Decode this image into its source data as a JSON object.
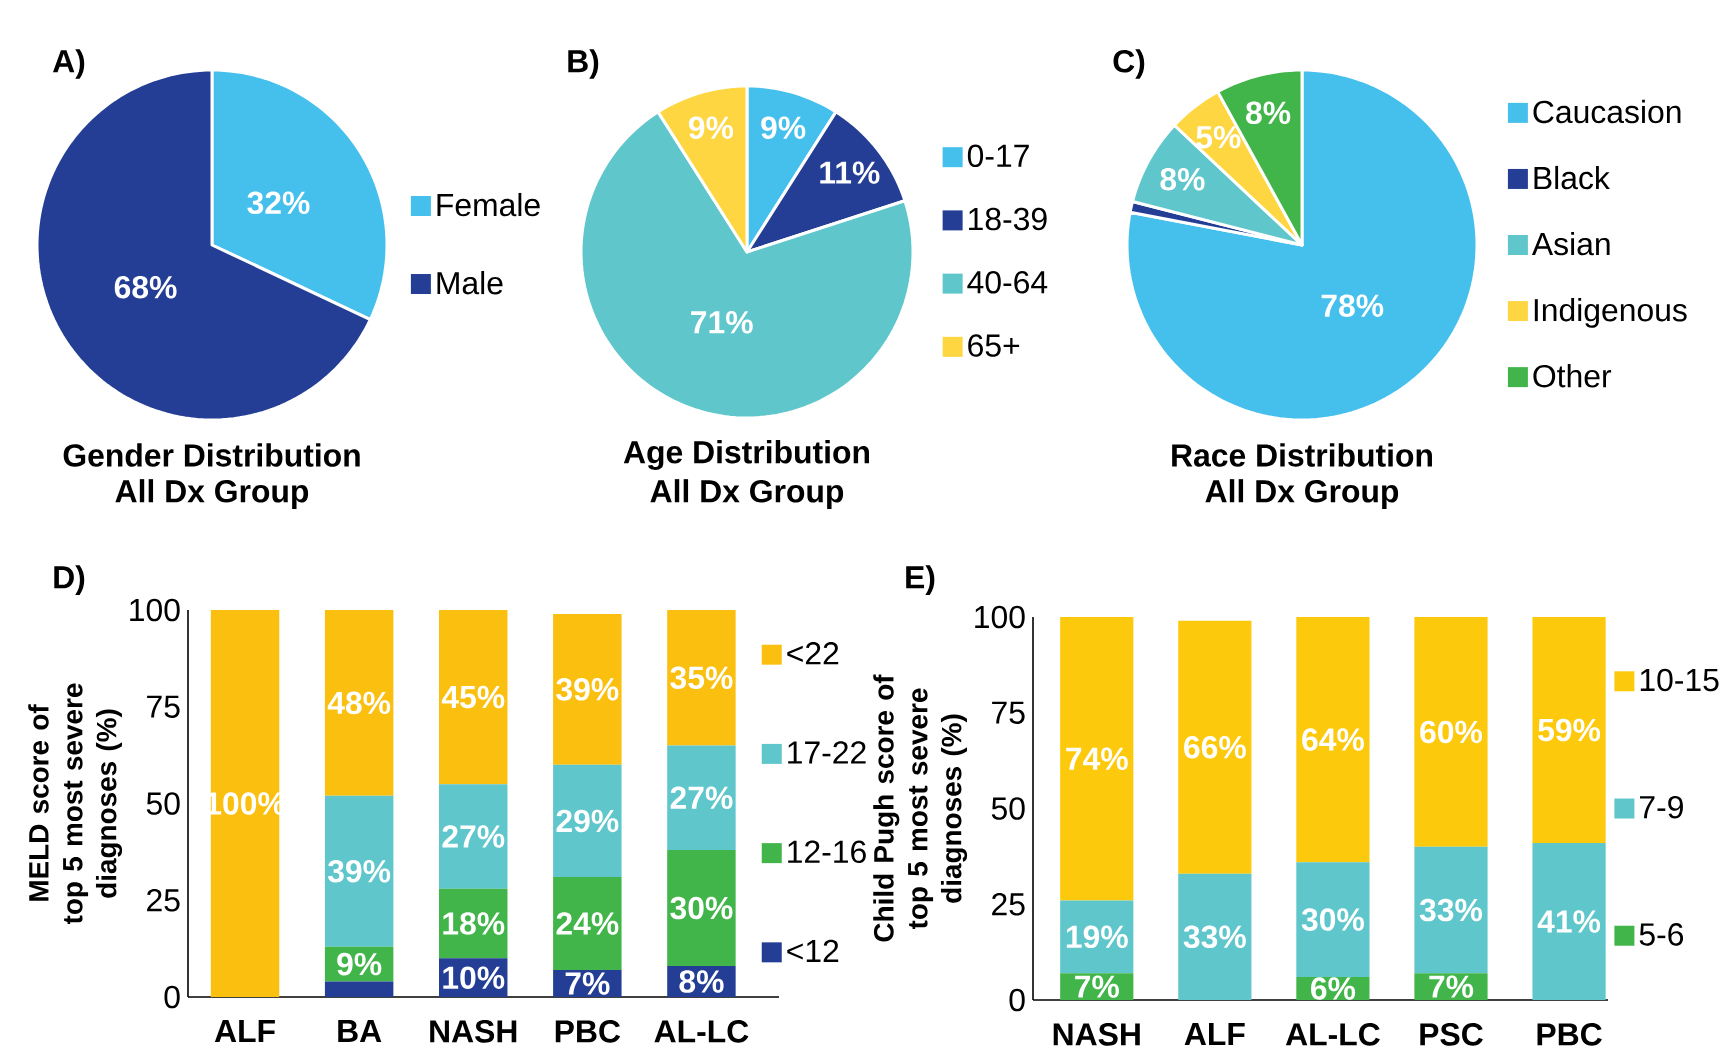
{
  "chart_data": [
    {
      "type": "pie",
      "title": "Gender Distribution",
      "subtitle": "All Dx Group",
      "annotations": [
        "A)"
      ],
      "categories": [
        "Female",
        "Male"
      ],
      "values": [
        32,
        68
      ],
      "colors": [
        "#45bfec",
        "#233e94"
      ],
      "value_labels": [
        "32%",
        "68%"
      ],
      "legend": "right"
    },
    {
      "type": "pie",
      "title": "Age Distribution",
      "subtitle": "All Dx Group",
      "annotations": [
        "B)"
      ],
      "categories": [
        "0-17",
        "18-39",
        "40-64",
        "65+"
      ],
      "values": [
        9,
        11,
        71,
        9
      ],
      "colors": [
        "#45bfec",
        "#233e94",
        "#5fc6cb",
        "#fdd641"
      ],
      "value_labels": [
        "9%",
        "11%",
        "71%",
        "9%"
      ],
      "legend": "right"
    },
    {
      "type": "pie",
      "title": "Race Distribution",
      "subtitle": "All Dx Group",
      "annotations": [
        "C)"
      ],
      "categories": [
        "Caucasion",
        "Black",
        "Asian",
        "Indigenous",
        "Other"
      ],
      "values": [
        78,
        1,
        8,
        5,
        8
      ],
      "colors": [
        "#45bfec",
        "#233e94",
        "#5fc6cb",
        "#fdd641",
        "#41b549"
      ],
      "value_labels": [
        "78%",
        null,
        "8%",
        "5%",
        "8%"
      ],
      "legend": "right"
    },
    {
      "type": "bar",
      "stacked": true,
      "annotations": [
        "D)"
      ],
      "ylabel": "MELD score of top 5 most severe diagnoses (%)",
      "categories": [
        "ALF",
        "BA",
        "NASH",
        "PBC",
        "AL-LC"
      ],
      "ylim": [
        0,
        100
      ],
      "yticks": [
        0,
        25,
        50,
        75,
        100
      ],
      "legend": "right",
      "series": [
        {
          "name": "<12",
          "color": "#233e94",
          "values": [
            0,
            4,
            10,
            7,
            8
          ],
          "value_labels": [
            null,
            null,
            "10%",
            "7%",
            "8%"
          ]
        },
        {
          "name": "12-16",
          "color": "#41b549",
          "values": [
            0,
            9,
            18,
            24,
            30
          ],
          "value_labels": [
            null,
            "9%",
            "18%",
            "24%",
            "30%"
          ]
        },
        {
          "name": "17-22",
          "color": "#5fc6cb",
          "values": [
            0,
            39,
            27,
            29,
            27
          ],
          "value_labels": [
            null,
            "39%",
            "27%",
            "29%",
            "27%"
          ]
        },
        {
          "name": "<22",
          "color": "#fbbf10",
          "values": [
            100,
            48,
            45,
            39,
            35
          ],
          "value_labels": [
            "100%",
            "48%",
            "45%",
            "39%",
            "35%"
          ]
        }
      ]
    },
    {
      "type": "bar",
      "stacked": true,
      "annotations": [
        "E)"
      ],
      "ylabel": "Child Pugh score of top 5 most severe diagnoses (%)",
      "categories": [
        "NASH",
        "ALF",
        "AL-LC",
        "PSC",
        "PBC"
      ],
      "ylim": [
        0,
        100
      ],
      "yticks": [
        0,
        25,
        50,
        75,
        100
      ],
      "legend": "right",
      "series": [
        {
          "name": "5-6",
          "color": "#41b549",
          "values": [
            7,
            0,
            6,
            7,
            0
          ],
          "value_labels": [
            "7%",
            null,
            "6%",
            "7%",
            null
          ]
        },
        {
          "name": "7-9",
          "color": "#5fc6cb",
          "values": [
            19,
            33,
            30,
            33,
            41
          ],
          "value_labels": [
            "19%",
            "33%",
            "30%",
            "33%",
            "41%"
          ]
        },
        {
          "name": "10-15",
          "color": "#fdc90c",
          "values": [
            74,
            66,
            64,
            60,
            59
          ],
          "value_labels": [
            "74%",
            "66%",
            "64%",
            "60%",
            "59%"
          ]
        }
      ]
    }
  ]
}
